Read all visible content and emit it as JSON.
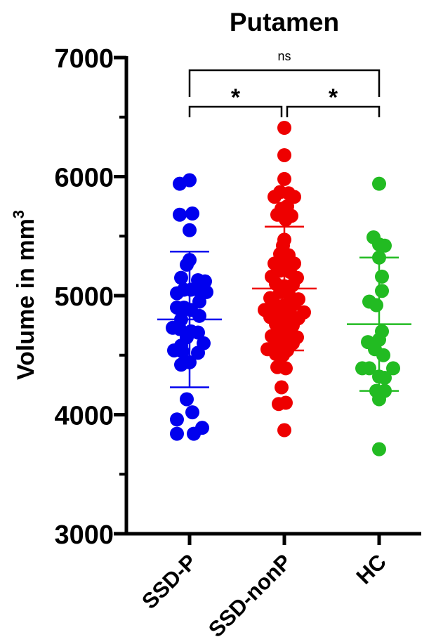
{
  "chart_data": {
    "type": "scatter",
    "title": "Putamen",
    "ylabel": "Volume in mm",
    "ylabel_superscript": "3",
    "ylim": [
      3000,
      7000
    ],
    "yticks": [
      3000,
      4000,
      5000,
      6000,
      7000
    ],
    "categories": [
      "SSD-P",
      "SSD-nonP",
      "HC"
    ],
    "grid": false,
    "series": [
      {
        "name": "SSD-P",
        "color": "#0000ee",
        "mean": 4800,
        "sd_low": 4230,
        "sd_high": 5370,
        "points": [
          {
            "dx": 0.0,
            "y": 5970
          },
          {
            "dx": -0.35,
            "y": 5940
          },
          {
            "dx": -0.35,
            "y": 5680
          },
          {
            "dx": 0.1,
            "y": 5690
          },
          {
            "dx": 0.0,
            "y": 5550
          },
          {
            "dx": 0.0,
            "y": 5300
          },
          {
            "dx": -0.1,
            "y": 5260
          },
          {
            "dx": -0.3,
            "y": 5150
          },
          {
            "dx": 0.3,
            "y": 5130
          },
          {
            "dx": 0.55,
            "y": 5120
          },
          {
            "dx": -0.2,
            "y": 5050
          },
          {
            "dx": 0.05,
            "y": 5050
          },
          {
            "dx": 0.3,
            "y": 5050
          },
          {
            "dx": -0.45,
            "y": 5020
          },
          {
            "dx": 0.6,
            "y": 5030
          },
          {
            "dx": 0.35,
            "y": 4950
          },
          {
            "dx": -0.45,
            "y": 4900
          },
          {
            "dx": -0.2,
            "y": 4900
          },
          {
            "dx": 0.05,
            "y": 4880
          },
          {
            "dx": 0.35,
            "y": 4830
          },
          {
            "dx": -0.3,
            "y": 4800
          },
          {
            "dx": -0.6,
            "y": 4730
          },
          {
            "dx": -0.35,
            "y": 4720
          },
          {
            "dx": 0.05,
            "y": 4700
          },
          {
            "dx": 0.3,
            "y": 4690
          },
          {
            "dx": -0.1,
            "y": 4650
          },
          {
            "dx": 0.5,
            "y": 4600
          },
          {
            "dx": -0.3,
            "y": 4580
          },
          {
            "dx": -0.55,
            "y": 4540
          },
          {
            "dx": -0.25,
            "y": 4530
          },
          {
            "dx": 0.3,
            "y": 4520
          },
          {
            "dx": -0.3,
            "y": 4420
          },
          {
            "dx": 0.0,
            "y": 4440
          },
          {
            "dx": -0.1,
            "y": 4130
          },
          {
            "dx": 0.1,
            "y": 4020
          },
          {
            "dx": -0.45,
            "y": 3960
          },
          {
            "dx": 0.45,
            "y": 3890
          },
          {
            "dx": -0.45,
            "y": 3840
          },
          {
            "dx": 0.15,
            "y": 3840
          }
        ]
      },
      {
        "name": "SSD-nonP",
        "color": "#ee0000",
        "mean": 5060,
        "sd_low": 4540,
        "sd_high": 5580,
        "points": [
          {
            "dx": 0.0,
            "y": 6410
          },
          {
            "dx": 0.0,
            "y": 6180
          },
          {
            "dx": 0.0,
            "y": 5980
          },
          {
            "dx": -0.15,
            "y": 5870
          },
          {
            "dx": 0.15,
            "y": 5860
          },
          {
            "dx": -0.35,
            "y": 5830
          },
          {
            "dx": 0.35,
            "y": 5830
          },
          {
            "dx": 0.1,
            "y": 5750
          },
          {
            "dx": -0.1,
            "y": 5730
          },
          {
            "dx": -0.25,
            "y": 5680
          },
          {
            "dx": 0.25,
            "y": 5670
          },
          {
            "dx": 0.05,
            "y": 5640
          },
          {
            "dx": 0.0,
            "y": 5470
          },
          {
            "dx": -0.05,
            "y": 5420
          },
          {
            "dx": -0.15,
            "y": 5350
          },
          {
            "dx": 0.15,
            "y": 5340
          },
          {
            "dx": -0.35,
            "y": 5270
          },
          {
            "dx": 0.35,
            "y": 5270
          },
          {
            "dx": 0.05,
            "y": 5250
          },
          {
            "dx": -0.15,
            "y": 5210
          },
          {
            "dx": 0.2,
            "y": 5200
          },
          {
            "dx": -0.45,
            "y": 5160
          },
          {
            "dx": 0.45,
            "y": 5150
          },
          {
            "dx": -0.3,
            "y": 5100
          },
          {
            "dx": 0.3,
            "y": 5090
          },
          {
            "dx": 0.0,
            "y": 5080
          },
          {
            "dx": -0.15,
            "y": 5030
          },
          {
            "dx": 0.15,
            "y": 5020
          },
          {
            "dx": -0.5,
            "y": 4980
          },
          {
            "dx": 0.5,
            "y": 4970
          },
          {
            "dx": -0.35,
            "y": 4930
          },
          {
            "dx": 0.35,
            "y": 4930
          },
          {
            "dx": 0.0,
            "y": 4920
          },
          {
            "dx": -0.7,
            "y": 4880
          },
          {
            "dx": 0.7,
            "y": 4860
          },
          {
            "dx": -0.2,
            "y": 4870
          },
          {
            "dx": 0.2,
            "y": 4860
          },
          {
            "dx": -0.5,
            "y": 4820
          },
          {
            "dx": 0.5,
            "y": 4810
          },
          {
            "dx": 0.0,
            "y": 4790
          },
          {
            "dx": -0.3,
            "y": 4760
          },
          {
            "dx": 0.3,
            "y": 4750
          },
          {
            "dx": -0.15,
            "y": 4710
          },
          {
            "dx": 0.15,
            "y": 4700
          },
          {
            "dx": -0.45,
            "y": 4660
          },
          {
            "dx": 0.45,
            "y": 4650
          },
          {
            "dx": 0.0,
            "y": 4630
          },
          {
            "dx": 0.3,
            "y": 4600
          },
          {
            "dx": -0.3,
            "y": 4590
          },
          {
            "dx": -0.6,
            "y": 4550
          },
          {
            "dx": 0.1,
            "y": 4540
          },
          {
            "dx": -0.3,
            "y": 4510
          },
          {
            "dx": -0.05,
            "y": 4500
          },
          {
            "dx": -0.25,
            "y": 4400
          },
          {
            "dx": 0.05,
            "y": 4390
          },
          {
            "dx": -0.1,
            "y": 4230
          },
          {
            "dx": -0.2,
            "y": 4090
          },
          {
            "dx": 0.05,
            "y": 4100
          },
          {
            "dx": 0.0,
            "y": 3870
          }
        ]
      },
      {
        "name": "HC",
        "color": "#22bb22",
        "mean": 4760,
        "sd_low": 4200,
        "sd_high": 5320,
        "points": [
          {
            "dx": 0.0,
            "y": 5940
          },
          {
            "dx": -0.2,
            "y": 5490
          },
          {
            "dx": 0.0,
            "y": 5430
          },
          {
            "dx": 0.2,
            "y": 5420
          },
          {
            "dx": 0.0,
            "y": 5320
          },
          {
            "dx": 0.1,
            "y": 5160
          },
          {
            "dx": 0.1,
            "y": 5040
          },
          {
            "dx": -0.35,
            "y": 4950
          },
          {
            "dx": -0.1,
            "y": 4920
          },
          {
            "dx": 0.1,
            "y": 4700
          },
          {
            "dx": 0.0,
            "y": 4630
          },
          {
            "dx": -0.4,
            "y": 4610
          },
          {
            "dx": -0.15,
            "y": 4550
          },
          {
            "dx": 0.15,
            "y": 4500
          },
          {
            "dx": -0.6,
            "y": 4390
          },
          {
            "dx": -0.35,
            "y": 4390
          },
          {
            "dx": 0.5,
            "y": 4390
          },
          {
            "dx": 0.0,
            "y": 4320
          },
          {
            "dx": 0.2,
            "y": 4310
          },
          {
            "dx": -0.1,
            "y": 4200
          },
          {
            "dx": 0.2,
            "y": 4200
          },
          {
            "dx": 0.0,
            "y": 4130
          },
          {
            "dx": 0.0,
            "y": 3710
          }
        ]
      }
    ],
    "annotations": [
      {
        "from": "SSD-P",
        "to": "HC",
        "label": "ns"
      },
      {
        "from": "SSD-P",
        "to": "SSD-nonP",
        "label": "*"
      },
      {
        "from": "SSD-nonP",
        "to": "HC",
        "label": "*"
      }
    ]
  }
}
